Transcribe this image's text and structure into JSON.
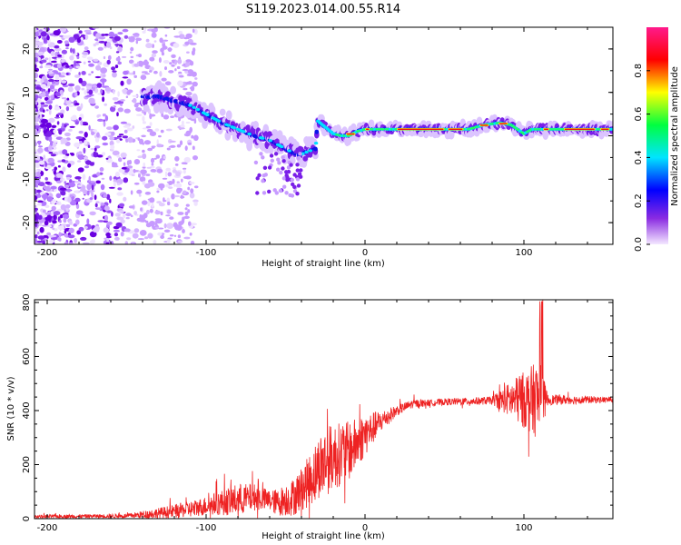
{
  "title": "S119.2023.014.00.55.R14",
  "chart_data": [
    {
      "type": "heatmap",
      "xlabel": "Height of straight line (km)",
      "ylabel": "Frequency (Hz)",
      "xlim": [
        -208,
        156
      ],
      "ylim": [
        -25,
        25
      ],
      "xticks": [
        -200,
        -100,
        0,
        100
      ],
      "yticks": [
        -20,
        -10,
        0,
        10,
        20
      ],
      "colorbar": {
        "label": "Normalized spectral amplitude",
        "range": [
          0,
          1
        ],
        "ticks": [
          0.0,
          0.2,
          0.4,
          0.6,
          0.8
        ],
        "colors": [
          "#f4e8ff",
          "#8a2be2",
          "#0000ff",
          "#00e5ff",
          "#00ff40",
          "#ffff00",
          "#ff0000",
          "#ff1a8c"
        ]
      },
      "ridge": [
        [
          -130,
          9
        ],
        [
          -120,
          8
        ],
        [
          -110,
          7
        ],
        [
          -100,
          5
        ],
        [
          -90,
          3
        ],
        [
          -80,
          1.5
        ],
        [
          -70,
          0
        ],
        [
          -60,
          -1
        ],
        [
          -50,
          -3
        ],
        [
          -42,
          -4.5
        ],
        [
          -35,
          -3.5
        ],
        [
          -31,
          -3
        ],
        [
          -30,
          3.5
        ],
        [
          -25,
          2
        ],
        [
          -20,
          0.5
        ],
        [
          -15,
          0
        ],
        [
          -10,
          0
        ],
        [
          -5,
          1
        ],
        [
          0,
          1.5
        ],
        [
          10,
          1.5
        ],
        [
          30,
          1.5
        ],
        [
          50,
          1.5
        ],
        [
          65,
          1.5
        ],
        [
          75,
          2.5
        ],
        [
          85,
          3
        ],
        [
          92,
          2.5
        ],
        [
          100,
          0.5
        ],
        [
          105,
          1.5
        ],
        [
          110,
          1.5
        ],
        [
          130,
          1.5
        ],
        [
          156,
          1.5
        ]
      ]
    },
    {
      "type": "line",
      "xlabel": "Height of straight line (km)",
      "ylabel": "SNR (10 * v/v)",
      "xlim": [
        -208,
        156
      ],
      "ylim": [
        0,
        810
      ],
      "xticks": [
        -200,
        -100,
        0,
        100
      ],
      "yticks": [
        0,
        200,
        400,
        600,
        800
      ],
      "color": "#ee2222",
      "baseline": [
        [
          -208,
          8
        ],
        [
          -150,
          10
        ],
        [
          -130,
          20
        ],
        [
          -110,
          35
        ],
        [
          -90,
          60
        ],
        [
          -70,
          80
        ],
        [
          -55,
          60
        ],
        [
          -45,
          80
        ],
        [
          -35,
          140
        ],
        [
          -28,
          200
        ],
        [
          -20,
          230
        ],
        [
          -10,
          250
        ],
        [
          0,
          310
        ],
        [
          10,
          360
        ],
        [
          20,
          400
        ],
        [
          30,
          425
        ],
        [
          50,
          432
        ],
        [
          70,
          435
        ],
        [
          90,
          440
        ],
        [
          100,
          440
        ],
        [
          110,
          440
        ],
        [
          120,
          440
        ],
        [
          156,
          440
        ]
      ],
      "noise": [
        [
          -208,
          6
        ],
        [
          -150,
          8
        ],
        [
          -130,
          20
        ],
        [
          -100,
          35
        ],
        [
          -80,
          60
        ],
        [
          -60,
          40
        ],
        [
          -40,
          80
        ],
        [
          -25,
          130
        ],
        [
          -10,
          110
        ],
        [
          0,
          80
        ],
        [
          10,
          40
        ],
        [
          20,
          20
        ],
        [
          40,
          12
        ],
        [
          80,
          15
        ],
        [
          90,
          60
        ],
        [
          110,
          150
        ],
        [
          115,
          20
        ],
        [
          156,
          10
        ]
      ]
    }
  ]
}
